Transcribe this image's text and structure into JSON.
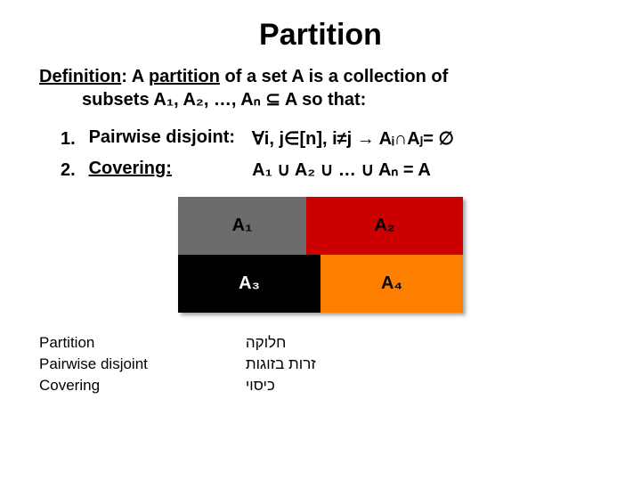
{
  "title": "Partition",
  "definition": {
    "label": "Definition",
    "term": "partition",
    "line1_before": ": A ",
    "line1_after": " of a set A is a collection of",
    "line2": "subsets A₁, A₂, …, Aₙ ⊆ A so that:"
  },
  "items": [
    {
      "num": "1.",
      "label": "Pairwise disjoint:",
      "underline": false,
      "value": "∀i, j∈[n], i≠j → Aᵢ∩Aⱼ= ∅"
    },
    {
      "num": "2.",
      "label": "Covering:",
      "underline": true,
      "value": "A₁ ∪ A₂ ∪ … ∪ Aₙ = A"
    }
  ],
  "diagram": {
    "cells": [
      {
        "label": "A₁",
        "bg": "#6b6b6b",
        "fg": "#000000"
      },
      {
        "label": "A₂",
        "bg": "#cc0000",
        "fg": "#000000"
      },
      {
        "label": "A₃",
        "bg": "#000000",
        "fg": "#ffffff"
      },
      {
        "label": "A₄",
        "bg": "#ff8000",
        "fg": "#000000"
      }
    ]
  },
  "glossary": {
    "en": [
      "Partition",
      "Pairwise disjoint",
      "Covering"
    ],
    "he": [
      "חלוקה",
      "זרות בזוגות",
      "כיסוי"
    ]
  },
  "colors": {
    "background": "#ffffff",
    "text": "#000000"
  }
}
